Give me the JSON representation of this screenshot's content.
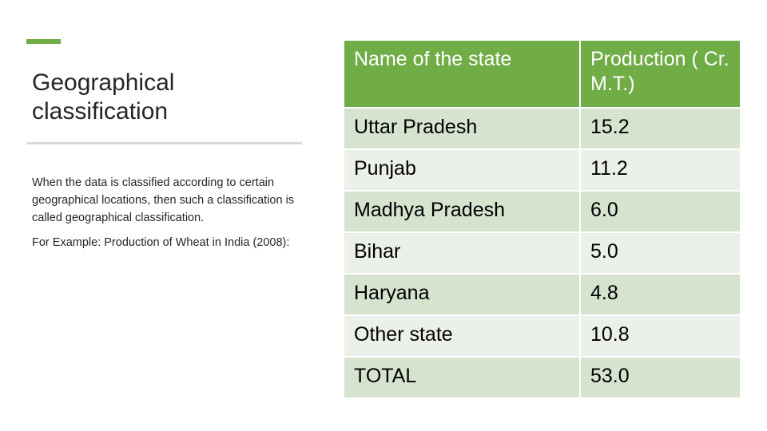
{
  "slide": {
    "title": "Geographical classification",
    "paragraphs": [
      "When the data is classified according to certain geographical locations, then such a classification is called geographical classification.",
      "For Example: Production of Wheat in India (2008):"
    ]
  },
  "table": {
    "headers": [
      "Name of the state",
      "Production ( Cr. M.T.)"
    ],
    "rows": [
      [
        "Uttar Pradesh",
        "15.2"
      ],
      [
        "Punjab",
        "11.2"
      ],
      [
        "Madhya Pradesh",
        "6.0"
      ],
      [
        "Bihar",
        "5.0"
      ],
      [
        "Haryana",
        "4.8"
      ],
      [
        "Other state",
        "10.8"
      ],
      [
        "TOTAL",
        "53.0"
      ]
    ]
  },
  "colors": {
    "accent": "#70ad47",
    "row_dark": "#d5e3cf",
    "row_light": "#ebf1e9",
    "rule": "#d9d9d9"
  }
}
